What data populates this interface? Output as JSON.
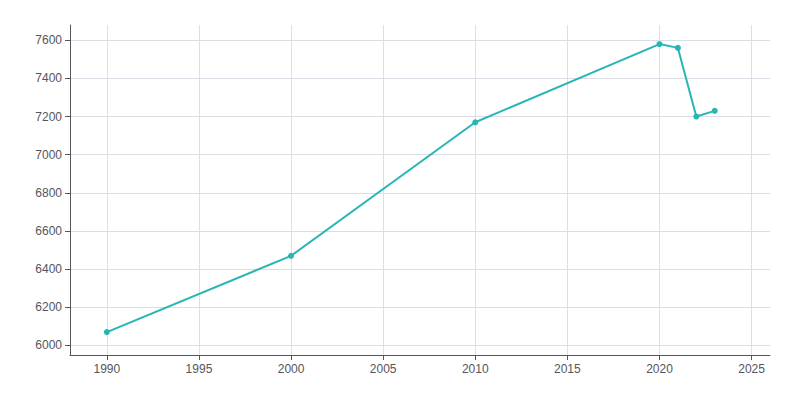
{
  "chart_data": {
    "type": "line",
    "x": [
      1990,
      2000,
      2010,
      2020,
      2021,
      2022,
      2023
    ],
    "values": [
      6070,
      6470,
      7170,
      7580,
      7560,
      7200,
      7230
    ],
    "color": "#2ab5b5",
    "marker": "circle",
    "xlim": [
      1988,
      2026
    ],
    "xticks": [
      1990,
      1995,
      2000,
      2005,
      2010,
      2015,
      2020,
      2025
    ],
    "ylim": [
      5950,
      7680
    ],
    "yticks": [
      6000,
      6200,
      6400,
      6600,
      6800,
      7000,
      7200,
      7400,
      7600
    ],
    "grid": true
  }
}
